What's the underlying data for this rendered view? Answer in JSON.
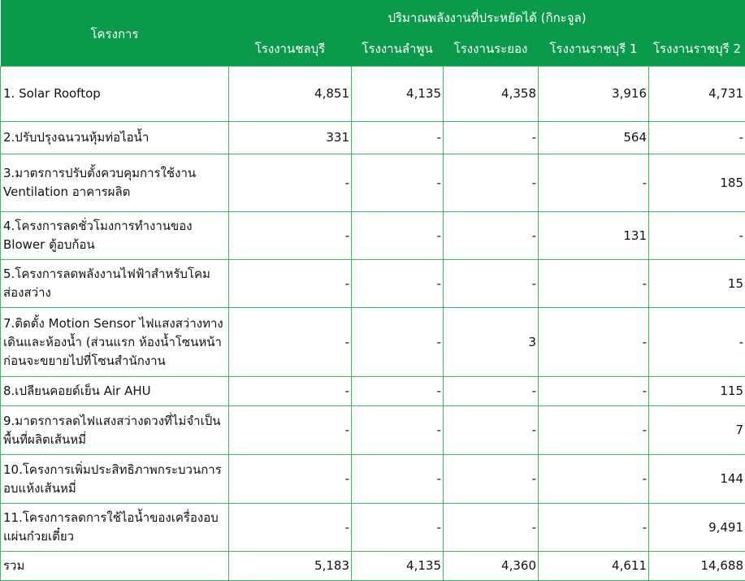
{
  "table": {
    "header_project": "โครงการ",
    "header_group": "ปริมาณพลังงานที่ประหยัดได้ (กิกะจูล)",
    "columns": [
      "โรงงานชลบุรี",
      "โรงงานลำพูน",
      "โรงงานระยอง",
      "โรงงานราชบุรี 1",
      "โรงงานราชบุรี 2"
    ],
    "rows": [
      {
        "name": "1. Solar Rooftop",
        "values": [
          "4,851",
          "4,135",
          "4,358",
          "3,916",
          "4,731"
        ]
      },
      {
        "name": "2.ปรับปรุงฉนวนหุ้มท่อไอน้ำ",
        "values": [
          "331",
          "-",
          "-",
          "564",
          "-"
        ]
      },
      {
        "name": "3.มาตรการปรับตั้งควบคุมการใช้งาน Ventilation อาคารผลิต",
        "values": [
          "-",
          "-",
          "-",
          "-",
          "185"
        ]
      },
      {
        "name": "4.โครงการลดชั่วโมงการทำงานของ Blower ตู้อบก้อน",
        "values": [
          "-",
          "-",
          "-",
          "131",
          "-"
        ]
      },
      {
        "name": "5.โครงการลดพลังงานไฟฟ้าสำหรับโคมส่องสว่าง",
        "values": [
          "-",
          "-",
          "-",
          "-",
          "15"
        ]
      },
      {
        "name": "7.ติดตั้ง Motion Sensor ไฟแสงสว่างทางเดินและห้องน้ำ (ส่วนแรก ห้องน้ำโซนหน้า ก่อนจะขยายไปที่โซนสำนักงาน",
        "values": [
          "-",
          "-",
          "3",
          "-",
          "-"
        ]
      },
      {
        "name": "8.เปลียนคอยด์เย็น Air AHU",
        "values": [
          "-",
          "-",
          "-",
          "-",
          "115"
        ]
      },
      {
        "name": "9.มาตรการลดไฟแสงสว่างดวงที่ไม่จำเป็นพื้นที่ผลิตเส้นหมี่",
        "values": [
          "-",
          "-",
          "-",
          "-",
          "7"
        ]
      },
      {
        "name": "10.โครงการเพิ่มประสิทธิภาพกระบวนการอบแห้งเส้นหมี่",
        "values": [
          "-",
          "-",
          "-",
          "-",
          "144"
        ]
      },
      {
        "name": "11.โครงการลดการใช้ไอน้ำของเครื่องอบแผ่นก๋วยเตี๋ยว",
        "values": [
          "-",
          "-",
          "-",
          "-",
          "9,491"
        ]
      }
    ],
    "total": {
      "name": "รวม",
      "values": [
        "5,183",
        "4,135",
        "4,360",
        "4,611",
        "14,688"
      ]
    }
  },
  "colors": {
    "header_bg": "#0b9a4b",
    "border": "#3db866"
  }
}
